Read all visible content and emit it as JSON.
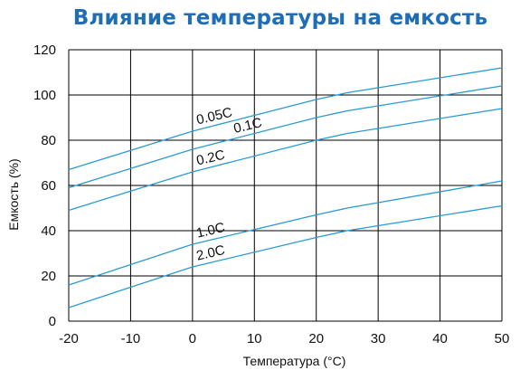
{
  "colors": {
    "title": "#1f6db5",
    "line": "#2a9ad6",
    "grid": "#000000",
    "text": "#111111"
  },
  "chart_data": {
    "type": "line",
    "title": "Влияние температуры на емкость",
    "xlabel": "Температура (°C)",
    "ylabel": "Емкость (%)",
    "xlim": [
      -20,
      50
    ],
    "ylim": [
      0,
      120
    ],
    "xticks": [
      "-20",
      "-10",
      "0",
      "10",
      "20",
      "30",
      "40",
      "50"
    ],
    "yticks": [
      "0",
      "20",
      "40",
      "60",
      "80",
      "100",
      "120"
    ],
    "grid": true,
    "legend": "none",
    "series": [
      {
        "name": "0.05C",
        "x": [
          -20,
          0,
          20,
          25,
          50
        ],
        "y": [
          67,
          84,
          98,
          101,
          112
        ]
      },
      {
        "name": "0.1C",
        "x": [
          -20,
          0,
          20,
          25,
          50
        ],
        "y": [
          59,
          76,
          90,
          93,
          104
        ]
      },
      {
        "name": "0.2C",
        "x": [
          -20,
          0,
          20,
          25,
          50
        ],
        "y": [
          49,
          66,
          80,
          83,
          94
        ]
      },
      {
        "name": "1.0C",
        "x": [
          -20,
          0,
          20,
          25,
          50
        ],
        "y": [
          16,
          34,
          47,
          50,
          62
        ]
      },
      {
        "name": "2.0C",
        "x": [
          -20,
          0,
          20,
          25,
          50
        ],
        "y": [
          6,
          24,
          37,
          40,
          51
        ]
      }
    ]
  }
}
